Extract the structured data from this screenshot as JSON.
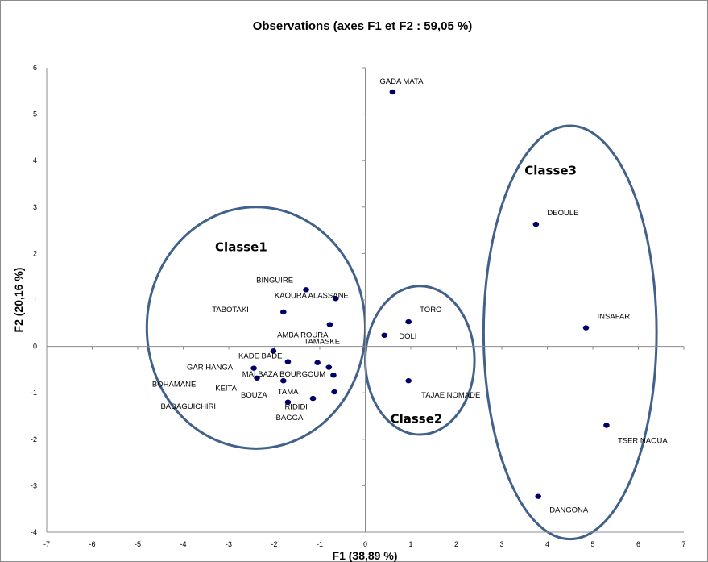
{
  "chart_data": {
    "type": "scatter",
    "title": "Observations (axes F1 et F2 : 59,05 %)",
    "xlabel": "F1 (38,89 %)",
    "ylabel": "F2 (20,16 %)",
    "xlim": [
      -7,
      7
    ],
    "ylim": [
      -4,
      6
    ],
    "xticks": [
      -7,
      -6,
      -5,
      -4,
      -3,
      -2,
      -1,
      0,
      1,
      2,
      3,
      4,
      5,
      6,
      7
    ],
    "yticks": [
      6,
      5,
      4,
      3,
      2,
      1,
      0,
      -1,
      -2,
      -3,
      -4
    ],
    "grid": false,
    "legend": "none",
    "marker_color": "#000066",
    "ellipse_color": "#41618A",
    "points": [
      {
        "label": "GADA MATA",
        "x": 0.6,
        "y": 5.48
      },
      {
        "label": "DEOULE",
        "x": 3.75,
        "y": 2.63
      },
      {
        "label": "INSAFARI",
        "x": 4.85,
        "y": 0.4
      },
      {
        "label": "TSER NAOUA",
        "x": 5.3,
        "y": -1.7
      },
      {
        "label": "DANGONA",
        "x": 3.8,
        "y": -3.23
      },
      {
        "label": "TORO",
        "x": 0.95,
        "y": 0.53
      },
      {
        "label": "DOLI",
        "x": 0.42,
        "y": 0.24
      },
      {
        "label": "TAJAE NOMADE",
        "x": 0.95,
        "y": -0.74
      },
      {
        "label": "BINGUIRE",
        "x": -1.3,
        "y": 1.22
      },
      {
        "label": "KAOURA ALASSANE",
        "x": -0.65,
        "y": 1.03
      },
      {
        "label": "TABOTAKI",
        "x": -1.8,
        "y": 0.74
      },
      {
        "label": "AMBA ROURA",
        "x": -0.78,
        "y": 0.47
      },
      {
        "label": "TAMASKE",
        "x": -2.02,
        "y": -0.1
      },
      {
        "label": "KADE BADE",
        "x": -1.7,
        "y": -0.33
      },
      {
        "label": "GAR HANGA",
        "x": -2.45,
        "y": -0.47
      },
      {
        "label": "MALBAZA BOURGOUM",
        "x": -1.05,
        "y": -0.35
      },
      {
        "label": "IBOHAMANE",
        "x": -0.8,
        "y": -0.45
      },
      {
        "label": "KEITA",
        "x": -0.7,
        "y": -0.62
      },
      {
        "label": "BOUZA",
        "x": -2.38,
        "y": -0.68
      },
      {
        "label": "TAMA",
        "x": -1.8,
        "y": -0.74
      },
      {
        "label": "BADAGUICHIRI",
        "x": -0.68,
        "y": -0.98
      },
      {
        "label": "BAGGA",
        "x": -1.15,
        "y": -1.12
      },
      {
        "label": "RIDIDI",
        "x": -1.7,
        "y": -1.2
      }
    ],
    "annotations": [
      {
        "label": "Classe1",
        "x": -3.3,
        "y": 2.05
      },
      {
        "label": "Classe2",
        "x": 0.55,
        "y": -1.65
      },
      {
        "label": "Classe3",
        "x": 3.5,
        "y": 3.7
      }
    ],
    "ellipses": [
      {
        "name": "Classe1",
        "cx": -2.4,
        "cy": 0.4,
        "rx": 2.4,
        "ry": 2.6
      },
      {
        "name": "Classe2",
        "cx": 1.2,
        "cy": -0.3,
        "rx": 1.2,
        "ry": 1.6
      },
      {
        "name": "Classe3",
        "cx": 4.5,
        "cy": 0.3,
        "rx": 1.9,
        "ry": 4.45
      }
    ]
  }
}
